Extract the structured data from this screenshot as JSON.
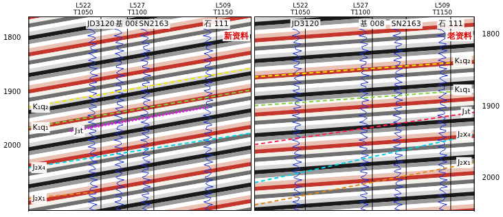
{
  "chart_data": [
    {
      "type": "line",
      "title": "新资料",
      "marker": "none",
      "grid": false,
      "tick_labels": "y",
      "xlim": [
        0,
        100
      ],
      "ylim": [
        1760,
        2120
      ],
      "yticks": [
        1800,
        1900,
        2000
      ],
      "survey_lines": [
        {
          "line": "L522",
          "trace": "T1050",
          "x": 24.6
        },
        {
          "line": "L527",
          "trace": "T1100",
          "x": 48.8
        },
        {
          "line": "L509",
          "trace": "T1150",
          "x": 87.3
        }
      ],
      "wells": [
        {
          "name": "JD3120",
          "x": 32.5
        },
        {
          "name": "基 008",
          "x": 44.4
        },
        {
          "name": "SN2163",
          "x": 56.2
        },
        {
          "name": "石 111",
          "x": 84.3
        }
      ],
      "series": [
        {
          "name": "K₁q₂",
          "color": "#f2e600",
          "line_style": "dashed",
          "x": [
            0,
            100
          ],
          "values": [
            1928,
            1856
          ]
        },
        {
          "name": "K₁q₁",
          "color": "#7fd13a",
          "line_style": "dashed",
          "x": [
            0,
            100
          ],
          "values": [
            1966,
            1896
          ]
        },
        {
          "name": "J₃t",
          "color": "#ff00ff",
          "line_style": "dotted",
          "x": [
            19,
            80
          ],
          "values": [
            1972,
            1928
          ]
        },
        {
          "name": "J₂x₄",
          "color": "#00d0e0",
          "line_style": "dashed",
          "x": [
            0,
            100
          ],
          "values": [
            2040,
            1976
          ]
        },
        {
          "name": "J₂x₁",
          "color": "#e08a1e",
          "line_style": "dashed",
          "x": [
            0,
            30
          ],
          "values": [
            2097,
            2085
          ]
        }
      ]
    },
    {
      "type": "line",
      "title": "老资料",
      "marker": "none",
      "grid": false,
      "tick_labels": "y",
      "xlim": [
        0,
        100
      ],
      "ylim": [
        1775,
        2045
      ],
      "yticks": [
        1800,
        1900,
        2000
      ],
      "survey_lines": [
        {
          "line": "L522",
          "trace": "T1050",
          "x": 21
        },
        {
          "line": "L527",
          "trace": "T1100",
          "x": 48.3
        },
        {
          "line": "L509",
          "trace": "T1150",
          "x": 85.4
        }
      ],
      "wells": [
        {
          "name": "JD3120",
          "x": 23.2
        },
        {
          "name": "基 008",
          "x": 53.6
        },
        {
          "name": "SN2163",
          "x": 69
        },
        {
          "name": "石 111",
          "x": 89.2
        }
      ],
      "series": [
        {
          "name": "K₁q₂",
          "color": "#f2e600",
          "line_style": "dashed",
          "x": [
            0,
            100
          ],
          "values": [
            1859,
            1837
          ]
        },
        {
          "name": "K₁q₁",
          "color": "#7fd13a",
          "line_style": "dashed",
          "x": [
            0,
            100
          ],
          "values": [
            1899,
            1877
          ]
        },
        {
          "name": "J₃t",
          "color": "#ff1f4a",
          "line_style": "dashed",
          "x": [
            0,
            100
          ],
          "values": [
            1953,
            1908
          ]
        },
        {
          "name": "J₂x₄",
          "color": "#00d0e0",
          "line_style": "dashed",
          "x": [
            0,
            100
          ],
          "values": [
            2006,
            1939
          ]
        },
        {
          "name": "J₂x₁",
          "color": "#e08a1e",
          "line_style": "dashed",
          "x": [
            0,
            100
          ],
          "values": [
            2037,
            1978
          ]
        }
      ]
    }
  ]
}
